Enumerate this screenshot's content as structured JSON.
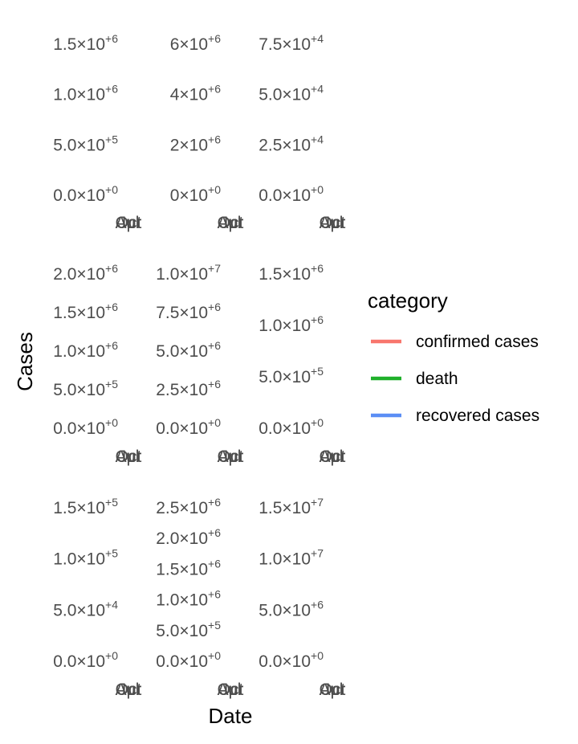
{
  "chart_data": {
    "type": "line",
    "xlabel": "Date",
    "ylabel": "Cases",
    "legend": {
      "title": "category",
      "placement": "right",
      "entries": [
        {
          "label": "confirmed cases",
          "color": "#F8766D"
        },
        {
          "label": "death",
          "color": "#1FB02A"
        },
        {
          "label": "recovered cases",
          "color": "#5B8EF5"
        }
      ]
    },
    "panels": [
      {
        "row": 1,
        "col": 1,
        "ylim": [
          0,
          1500000
        ],
        "y_ticks": [
          {
            "value": 0,
            "mant": "0.0",
            "exp": "+0"
          },
          {
            "value": 500000,
            "mant": "5.0",
            "exp": "+5"
          },
          {
            "value": 1000000,
            "mant": "1.0",
            "exp": "+6"
          },
          {
            "value": 1500000,
            "mant": "1.5",
            "exp": "+6"
          }
        ],
        "x_tick_labels": [
          "Apr",
          "Jul",
          "Oct"
        ],
        "series": []
      },
      {
        "row": 1,
        "col": 2,
        "ylim": [
          0,
          6000000
        ],
        "y_ticks": [
          {
            "value": 0,
            "mant": "0",
            "exp": "+0"
          },
          {
            "value": 2000000,
            "mant": "2",
            "exp": "+6"
          },
          {
            "value": 4000000,
            "mant": "4",
            "exp": "+6"
          },
          {
            "value": 6000000,
            "mant": "6",
            "exp": "+6"
          }
        ],
        "x_tick_labels": [
          "Apr",
          "Jul",
          "Oct"
        ],
        "series": []
      },
      {
        "row": 1,
        "col": 3,
        "ylim": [
          0,
          75000
        ],
        "y_ticks": [
          {
            "value": 0,
            "mant": "0.0",
            "exp": "+0"
          },
          {
            "value": 25000,
            "mant": "2.5",
            "exp": "+4"
          },
          {
            "value": 50000,
            "mant": "5.0",
            "exp": "+4"
          },
          {
            "value": 75000,
            "mant": "7.5",
            "exp": "+4"
          }
        ],
        "x_tick_labels": [
          "Apr",
          "Jul",
          "Oct"
        ],
        "series": []
      },
      {
        "row": 2,
        "col": 1,
        "ylim": [
          0,
          2000000
        ],
        "y_ticks": [
          {
            "value": 0,
            "mant": "0.0",
            "exp": "+0"
          },
          {
            "value": 500000,
            "mant": "5.0",
            "exp": "+5"
          },
          {
            "value": 1000000,
            "mant": "1.0",
            "exp": "+6"
          },
          {
            "value": 1500000,
            "mant": "1.5",
            "exp": "+6"
          },
          {
            "value": 2000000,
            "mant": "2.0",
            "exp": "+6"
          }
        ],
        "x_tick_labels": [
          "Apr",
          "Jul",
          "Oct"
        ],
        "series": []
      },
      {
        "row": 2,
        "col": 2,
        "ylim": [
          0,
          10000000
        ],
        "y_ticks": [
          {
            "value": 0,
            "mant": "0.0",
            "exp": "+0"
          },
          {
            "value": 2500000,
            "mant": "2.5",
            "exp": "+6"
          },
          {
            "value": 5000000,
            "mant": "5.0",
            "exp": "+6"
          },
          {
            "value": 7500000,
            "mant": "7.5",
            "exp": "+6"
          },
          {
            "value": 10000000,
            "mant": "1.0",
            "exp": "+7"
          }
        ],
        "x_tick_labels": [
          "Apr",
          "Jul",
          "Oct"
        ],
        "series": []
      },
      {
        "row": 2,
        "col": 3,
        "ylim": [
          0,
          1500000
        ],
        "y_ticks": [
          {
            "value": 0,
            "mant": "0.0",
            "exp": "+0"
          },
          {
            "value": 500000,
            "mant": "5.0",
            "exp": "+5"
          },
          {
            "value": 1000000,
            "mant": "1.0",
            "exp": "+6"
          },
          {
            "value": 1500000,
            "mant": "1.5",
            "exp": "+6"
          }
        ],
        "x_tick_labels": [
          "Apr",
          "Jul",
          "Oct"
        ],
        "series": []
      },
      {
        "row": 3,
        "col": 1,
        "ylim": [
          0,
          150000
        ],
        "y_ticks": [
          {
            "value": 0,
            "mant": "0.0",
            "exp": "+0"
          },
          {
            "value": 50000,
            "mant": "5.0",
            "exp": "+4"
          },
          {
            "value": 100000,
            "mant": "1.0",
            "exp": "+5"
          },
          {
            "value": 150000,
            "mant": "1.5",
            "exp": "+5"
          }
        ],
        "x_tick_labels": [
          "Apr",
          "Jul",
          "Oct"
        ],
        "series": []
      },
      {
        "row": 3,
        "col": 2,
        "ylim": [
          0,
          2500000
        ],
        "y_ticks": [
          {
            "value": 0,
            "mant": "0.0",
            "exp": "+0"
          },
          {
            "value": 500000,
            "mant": "5.0",
            "exp": "+5"
          },
          {
            "value": 1000000,
            "mant": "1.0",
            "exp": "+6"
          },
          {
            "value": 1500000,
            "mant": "1.5",
            "exp": "+6"
          },
          {
            "value": 2000000,
            "mant": "2.0",
            "exp": "+6"
          },
          {
            "value": 2500000,
            "mant": "2.5",
            "exp": "+6"
          }
        ],
        "x_tick_labels": [
          "Apr",
          "Jul",
          "Oct"
        ],
        "series": []
      },
      {
        "row": 3,
        "col": 3,
        "ylim": [
          0,
          15000000
        ],
        "y_ticks": [
          {
            "value": 0,
            "mant": "0.0",
            "exp": "+0"
          },
          {
            "value": 5000000,
            "mant": "5.0",
            "exp": "+6"
          },
          {
            "value": 10000000,
            "mant": "1.0",
            "exp": "+7"
          },
          {
            "value": 15000000,
            "mant": "1.5",
            "exp": "+7"
          }
        ],
        "x_tick_labels": [
          "Apr",
          "Jul",
          "Oct"
        ],
        "series": []
      }
    ]
  }
}
